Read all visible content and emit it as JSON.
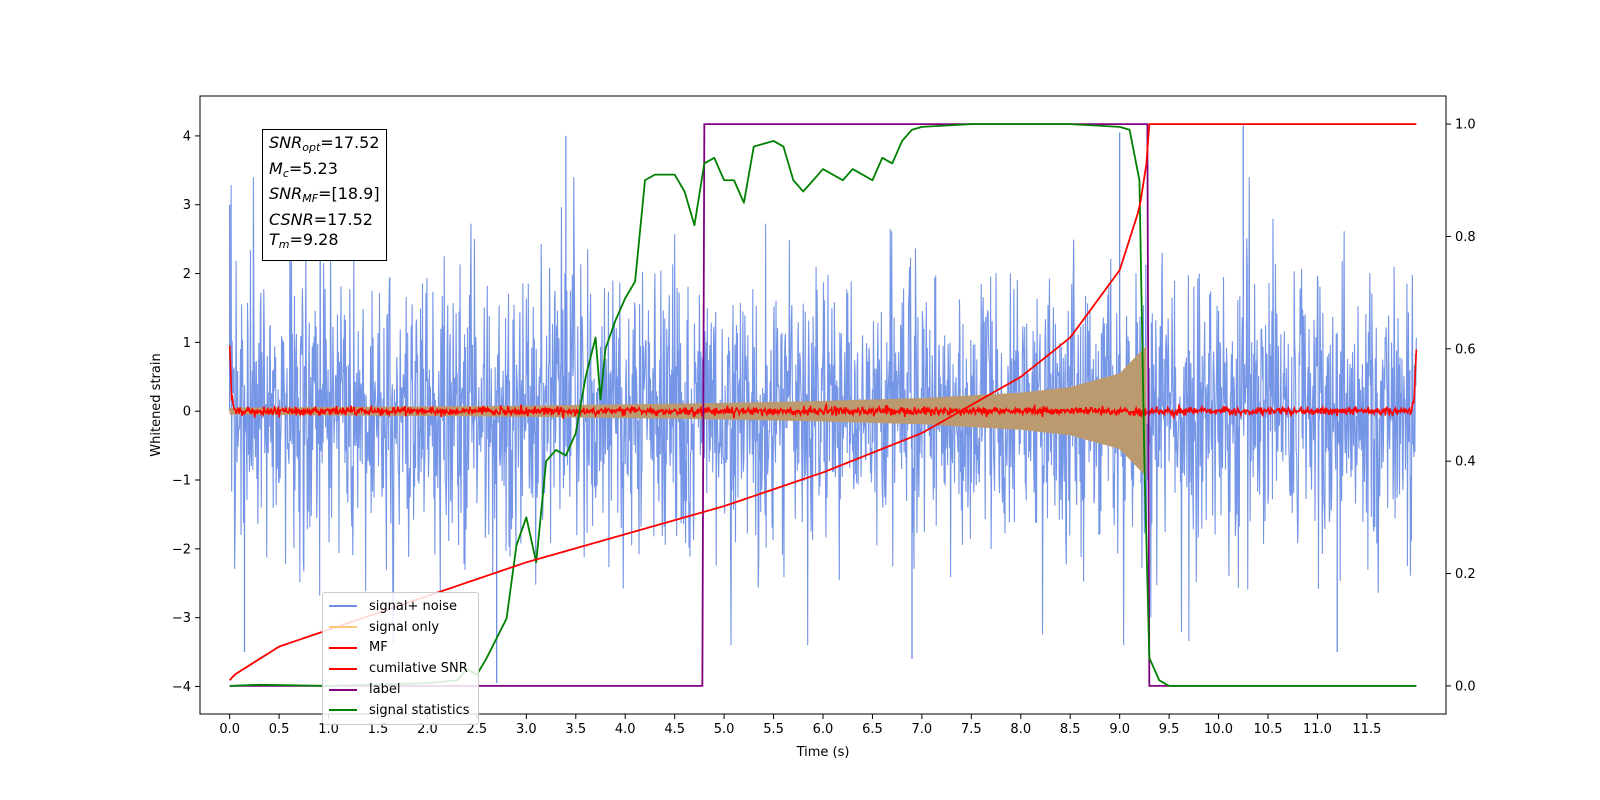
{
  "chart_data": {
    "type": "line",
    "xlabel": "Time (s)",
    "ylabel": "Whitened strain",
    "x_ticks": [
      "0.0",
      "0.5",
      "1.0",
      "1.5",
      "2.0",
      "2.5",
      "3.0",
      "3.5",
      "4.0",
      "4.5",
      "5.0",
      "5.5",
      "6.0",
      "6.5",
      "7.0",
      "7.5",
      "8.0",
      "8.5",
      "9.0",
      "9.5",
      "10.0",
      "10.5",
      "11.0",
      "11.5"
    ],
    "y_ticks": [
      "4",
      "3",
      "2",
      "1",
      "0",
      "−1",
      "−2",
      "−3",
      "−4"
    ],
    "y2_ticks": [
      "1.0",
      "0.8",
      "0.6",
      "0.4",
      "0.2",
      "0.0"
    ],
    "xlim": [
      -0.3,
      12.3
    ],
    "ylim": [
      -4.4,
      4.58
    ],
    "y2lim": [
      -0.05,
      1.05
    ],
    "legend_position": "lower-left",
    "annotation": {
      "snr_opt": "17.52",
      "mc": "5.23",
      "snr_mf": "[18.9]",
      "csnr": "17.52",
      "tm": "9.28"
    },
    "legend": [
      {
        "label": "signal+ noise",
        "color": "#6e8fe5"
      },
      {
        "label": "signal only",
        "color": "#ffc87a"
      },
      {
        "label": "MF",
        "color": "#ff0000"
      },
      {
        "label": "cumilative SNR",
        "color": "#ff0000"
      },
      {
        "label": "label",
        "color": "#800080"
      },
      {
        "label": "signal statistics",
        "color": "#008000"
      }
    ],
    "series": [
      {
        "name": "signal+ noise",
        "axis": "left",
        "color": "#6e8fe5",
        "description_range": [
          0,
          12
        ],
        "envelope_typical": [
          -2.1,
          2.1
        ],
        "max_peaks": [
          [
            0.0,
            3.0
          ],
          [
            3.4,
            4.0
          ],
          [
            9.0,
            4.05
          ],
          [
            10.25,
            4.15
          ]
        ],
        "min_peaks": [
          [
            0.15,
            -3.5
          ],
          [
            2.7,
            -3.95
          ],
          [
            6.9,
            -3.6
          ],
          [
            11.2,
            -3.5
          ]
        ]
      },
      {
        "name": "signal only",
        "axis": "left",
        "color": "#ffc87a",
        "x": [
          0.0,
          1.0,
          2.0,
          3.0,
          4.0,
          5.0,
          6.0,
          7.0,
          8.0,
          8.5,
          9.0,
          9.2,
          9.27
        ],
        "amplitude": [
          0.05,
          0.06,
          0.07,
          0.08,
          0.1,
          0.12,
          0.15,
          0.19,
          0.27,
          0.35,
          0.55,
          0.85,
          0.95
        ]
      },
      {
        "name": "MF",
        "axis": "left",
        "color": "#ff0000",
        "x": [
          0.0,
          0.02,
          0.05,
          11.95,
          11.98,
          12.0
        ],
        "y": [
          1.0,
          0.2,
          0.0,
          0.0,
          0.2,
          0.9
        ],
        "noise_amplitude": 0.06
      },
      {
        "name": "cumilative SNR",
        "axis": "right",
        "color": "#ff0000",
        "x": [
          0.0,
          0.05,
          0.5,
          1.0,
          2.0,
          3.0,
          4.0,
          5.0,
          6.0,
          7.0,
          8.0,
          8.5,
          9.0,
          9.2,
          9.28,
          9.3,
          12.0
        ],
        "y": [
          0.01,
          0.02,
          0.07,
          0.1,
          0.16,
          0.22,
          0.27,
          0.32,
          0.38,
          0.45,
          0.55,
          0.62,
          0.74,
          0.85,
          0.94,
          1.0,
          1.0
        ]
      },
      {
        "name": "label",
        "axis": "right",
        "color": "#800080",
        "x": [
          0.0,
          4.78,
          4.8,
          9.28,
          9.3,
          12.0
        ],
        "y": [
          0.0,
          0.0,
          1.0,
          1.0,
          0.0,
          0.0
        ]
      },
      {
        "name": "signal statistics",
        "axis": "right",
        "color": "#008000",
        "x": [
          0.0,
          0.3,
          1.0,
          2.0,
          2.3,
          2.4,
          2.5,
          2.6,
          2.8,
          2.9,
          3.0,
          3.1,
          3.2,
          3.3,
          3.4,
          3.5,
          3.6,
          3.7,
          3.75,
          3.8,
          3.9,
          4.0,
          4.1,
          4.2,
          4.3,
          4.5,
          4.6,
          4.7,
          4.8,
          4.9,
          5.0,
          5.1,
          5.2,
          5.3,
          5.5,
          5.6,
          5.7,
          5.8,
          6.0,
          6.2,
          6.3,
          6.5,
          6.6,
          6.7,
          6.8,
          6.9,
          7.0,
          7.5,
          8.0,
          8.5,
          9.0,
          9.1,
          9.2,
          9.25,
          9.3,
          9.4,
          9.5,
          12.0
        ],
        "y": [
          0.0,
          0.002,
          0.0,
          0.005,
          0.01,
          0.03,
          0.02,
          0.05,
          0.12,
          0.25,
          0.3,
          0.22,
          0.4,
          0.42,
          0.41,
          0.45,
          0.55,
          0.62,
          0.51,
          0.6,
          0.65,
          0.69,
          0.72,
          0.9,
          0.91,
          0.91,
          0.88,
          0.82,
          0.93,
          0.94,
          0.9,
          0.9,
          0.86,
          0.96,
          0.97,
          0.96,
          0.9,
          0.88,
          0.92,
          0.9,
          0.92,
          0.9,
          0.94,
          0.93,
          0.97,
          0.99,
          0.995,
          1.0,
          1.0,
          1.0,
          0.995,
          0.99,
          0.9,
          0.4,
          0.05,
          0.01,
          0.0,
          0.0
        ]
      }
    ]
  }
}
